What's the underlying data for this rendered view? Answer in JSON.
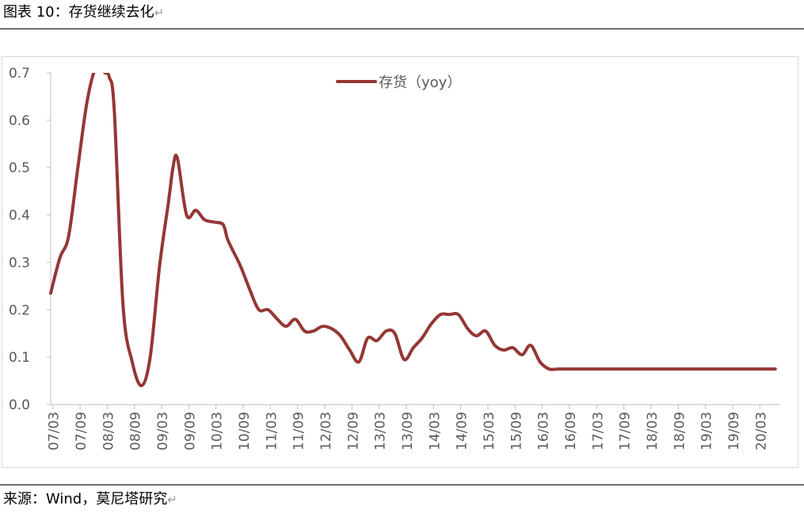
{
  "header": {
    "title": "图表 10：存货继续去化",
    "return_mark": "↵"
  },
  "footer": {
    "source": "来源：Wind，莫尼塔研究",
    "return_mark": "↵"
  },
  "chart_data": {
    "type": "line",
    "categories": [
      "07/03",
      "07/09",
      "08/03",
      "08/09",
      "09/03",
      "09/09",
      "10/03",
      "10/09",
      "11/03",
      "11/09",
      "12/03",
      "12/09",
      "13/03",
      "13/09",
      "14/03",
      "14/09",
      "15/03",
      "15/09",
      "16/03",
      "16/09",
      "17/03",
      "17/09",
      "18/03",
      "18/09",
      "19/03",
      "19/09",
      "20/03"
    ],
    "ylim": [
      0,
      0.7
    ],
    "yticks": [
      "0.0",
      "0.1",
      "0.2",
      "0.3",
      "0.4",
      "0.5",
      "0.6",
      "0.7"
    ],
    "grid": false,
    "legend": "top-center",
    "series": [
      {
        "name": "存货（yoy）",
        "color": "#953735",
        "x": [
          2007.0,
          2007.17,
          2007.33,
          2007.5,
          2007.67,
          2007.83,
          2008.0,
          2008.08,
          2008.17,
          2008.33,
          2008.5,
          2008.67,
          2008.83,
          2009.0,
          2009.17,
          2009.25,
          2009.33,
          2009.5,
          2009.67,
          2009.83,
          2010.0,
          2010.17,
          2010.25,
          2010.33,
          2010.5,
          2010.67,
          2010.83,
          2011.0,
          2011.17,
          2011.33,
          2011.5,
          2011.67,
          2011.83,
          2012.0,
          2012.17,
          2012.33,
          2012.5,
          2012.67,
          2012.83,
          2013.0,
          2013.17,
          2013.33,
          2013.5,
          2013.67,
          2013.83,
          2014.0,
          2014.17,
          2014.33,
          2014.5,
          2014.67,
          2014.83,
          2015.0,
          2015.17,
          2015.33,
          2015.5,
          2015.67,
          2015.83,
          2016.0,
          2016.17,
          2016.33,
          2016.5,
          2016.67,
          2016.83,
          2017.0,
          2017.17,
          2017.33,
          2017.5,
          2017.67,
          2017.83,
          2018.0,
          2018.17,
          2018.33,
          2018.5,
          2018.67,
          2018.83,
          2019.0,
          2019.17,
          2019.33,
          2019.5,
          2019.67,
          2019.83,
          2020.0,
          2020.17,
          2020.33
        ],
        "values": [
          0.235,
          0.31,
          0.355,
          0.5,
          0.64,
          0.71,
          0.7,
          0.69,
          0.62,
          0.21,
          0.09,
          0.04,
          0.1,
          0.29,
          0.43,
          0.5,
          0.52,
          0.4,
          0.41,
          0.39,
          0.385,
          0.38,
          0.35,
          0.33,
          0.29,
          0.24,
          0.2,
          0.2,
          0.18,
          0.165,
          0.18,
          0.155,
          0.155,
          0.165,
          0.16,
          0.145,
          0.115,
          0.09,
          0.14,
          0.135,
          0.155,
          0.15,
          0.095,
          0.12,
          0.14,
          0.17,
          0.19,
          0.19,
          0.19,
          0.16,
          0.145,
          0.155,
          0.125,
          0.115,
          0.12,
          0.105,
          0.125,
          0.09,
          0.075,
          0.075,
          0.075,
          0.075,
          0.075,
          0.075,
          0.075,
          0.075,
          0.075,
          0.075,
          0.075,
          0.075,
          0.075,
          0.075,
          0.075,
          0.075,
          0.075,
          0.075,
          0.075,
          0.075,
          0.075,
          0.075,
          0.075,
          0.075,
          0.075,
          0.075
        ]
      }
    ]
  }
}
